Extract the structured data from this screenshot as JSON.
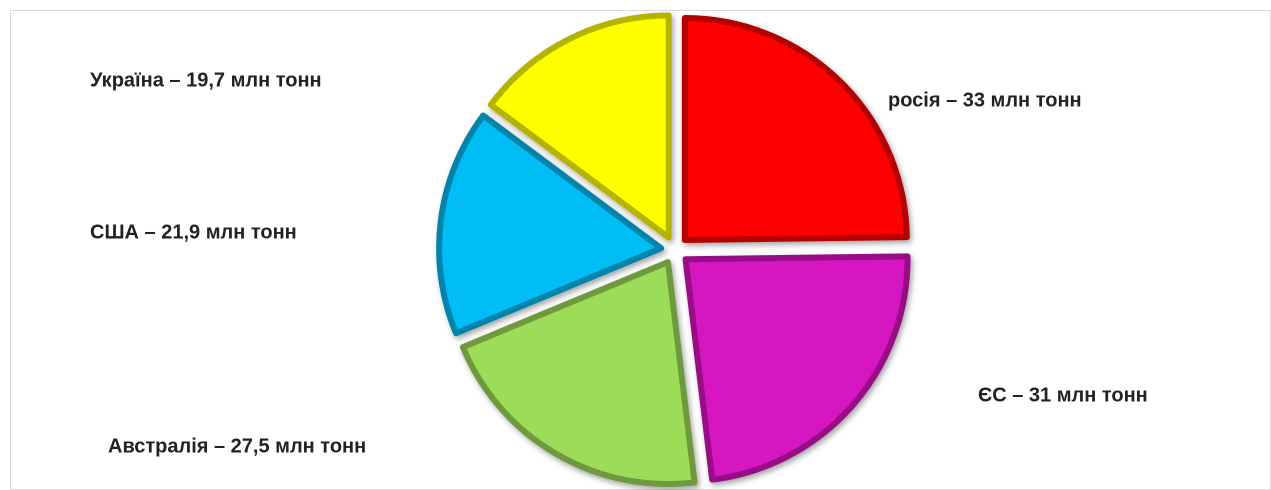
{
  "chart_data": {
    "type": "pie",
    "values": [
      33,
      31,
      27.5,
      21.9,
      19.7
    ],
    "value_labels": [
      "росія – 33 млн тонн",
      "ЄС – 31 млн тонн",
      "Австралія – 27,5 млн тонн",
      "США – 21,9 млн тонн",
      "Україна – 19,7 млн тонн"
    ],
    "colors": [
      "#ff0000",
      "#d612c0",
      "#9ddc58",
      "#00bdf6",
      "#ffff00"
    ]
  }
}
